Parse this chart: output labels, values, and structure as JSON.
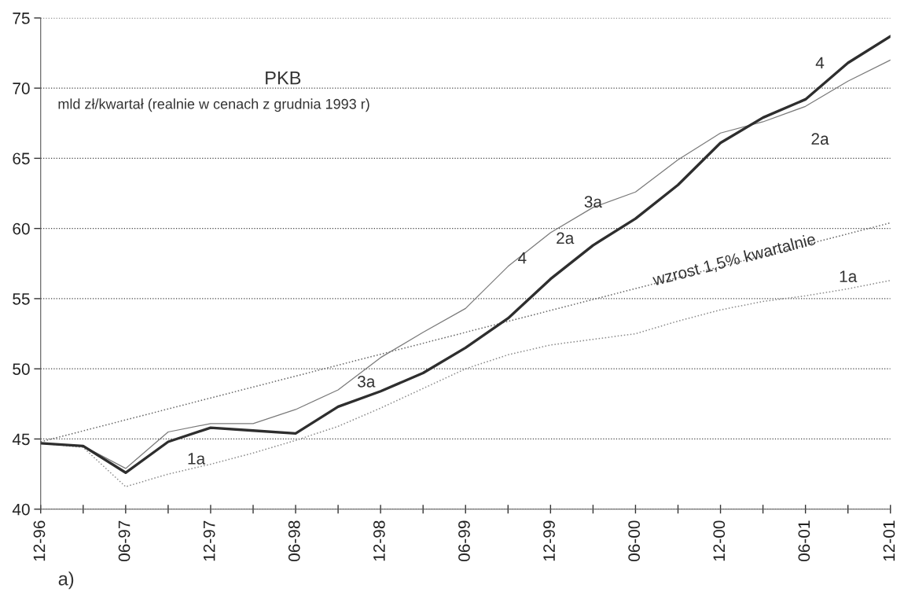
{
  "chart_data": {
    "type": "line",
    "title": "PKB",
    "subtitle": "mld zł/kwartał (realnie w cenach z grudnia 1993 r)",
    "x": [
      "1996-12",
      "1997-03",
      "1997-06",
      "1997-09",
      "1997-12",
      "1998-03",
      "1998-06",
      "1998-09",
      "1998-12",
      "1999-03",
      "1999-06",
      "1999-09",
      "1999-12",
      "2000-03",
      "2000-06",
      "2000-09",
      "2000-12",
      "2001-03",
      "2001-06",
      "2001-09",
      "2001-12"
    ],
    "series": [
      {
        "color": "#8a8a8a",
        "line_style": "dotted",
        "values": [
          44.7,
          44.4,
          41.6,
          42.5,
          43.2,
          44.0,
          44.9,
          45.9,
          47.2,
          48.6,
          50.0,
          51.0,
          51.7,
          52.1,
          52.5,
          53.4,
          54.2,
          54.8,
          55.2,
          55.7,
          56.3
        ]
      },
      {
        "color": "#666666",
        "line_style": "dotted",
        "x": [
          "1996-12",
          "2001-12"
        ],
        "values": [
          44.8,
          60.4
        ]
      },
      {
        "color": "#7a7a7a",
        "line_style": "solid",
        "values": [
          44.7,
          44.5,
          42.9,
          45.5,
          46.1,
          46.1,
          47.1,
          48.5,
          50.8,
          52.6,
          54.3,
          57.3,
          59.7,
          61.5,
          62.6,
          64.9,
          66.8,
          67.6,
          68.7,
          70.5,
          72.0
        ]
      },
      {
        "color": "#2e2e2e",
        "line_style": "solid",
        "values": [
          44.7,
          44.5,
          42.6,
          44.8,
          45.8,
          45.6,
          45.4,
          47.3,
          48.4,
          49.7,
          51.5,
          53.6,
          56.4,
          58.8,
          60.7,
          63.1,
          66.1,
          67.9,
          69.2,
          71.8,
          73.7
        ]
      }
    ],
    "annotations": [
      "1a",
      "3a",
      {
        "text": "4",
        "x": "1999-10",
        "y": 57.8
      },
      "2a",
      {
        "text": "3a",
        "x": "2000-03",
        "y": 61.8
      },
      "4",
      "2a",
      "1a",
      {
        "text": "wzrost 1,5% kwartalnie",
        "x": "2001-01",
        "y": 57.7
      },
      "a)"
    ],
    "xlim": [
      "1996-12",
      "2001-12"
    ],
    "xticks": [
      {
        "value": "1996-12",
        "label": "12-96"
      },
      {
        "value": "1997-03",
        "label": null
      },
      {
        "value": "1997-06",
        "label": "06-97"
      },
      {
        "value": "1997-09",
        "label": null
      },
      {
        "value": "1997-12",
        "label": "12-97"
      },
      {
        "value": "1998-03",
        "label": null
      },
      {
        "value": "1998-06",
        "label": "06-98"
      },
      {
        "value": "1998-09",
        "label": null
      },
      {
        "value": "1998-12",
        "label": "12-98"
      },
      {
        "value": "1999-03",
        "label": null
      },
      {
        "value": "1999-06",
        "label": "06-99"
      },
      {
        "value": "1999-09",
        "label": null
      },
      {
        "value": "1999-12",
        "label": "12-99"
      },
      {
        "value": "2000-03",
        "label": null
      },
      {
        "value": "2000-06",
        "label": "06-00"
      },
      {
        "value": "2000-09",
        "label": null
      },
      {
        "value": "2000-12",
        "label": "12-00"
      },
      {
        "value": "2001-03",
        "label": null
      },
      {
        "value": "2001-06",
        "label": "06-01"
      },
      {
        "value": "2001-09",
        "label": null
      },
      {
        "value": "2001-12",
        "label": "12-01"
      }
    ],
    "ylim": [
      40,
      75
    ],
    "yticks": [
      40,
      45,
      50,
      55,
      60,
      65,
      70,
      75
    ],
    "grid": "y",
    "marker": "none",
    "legend": false
  }
}
